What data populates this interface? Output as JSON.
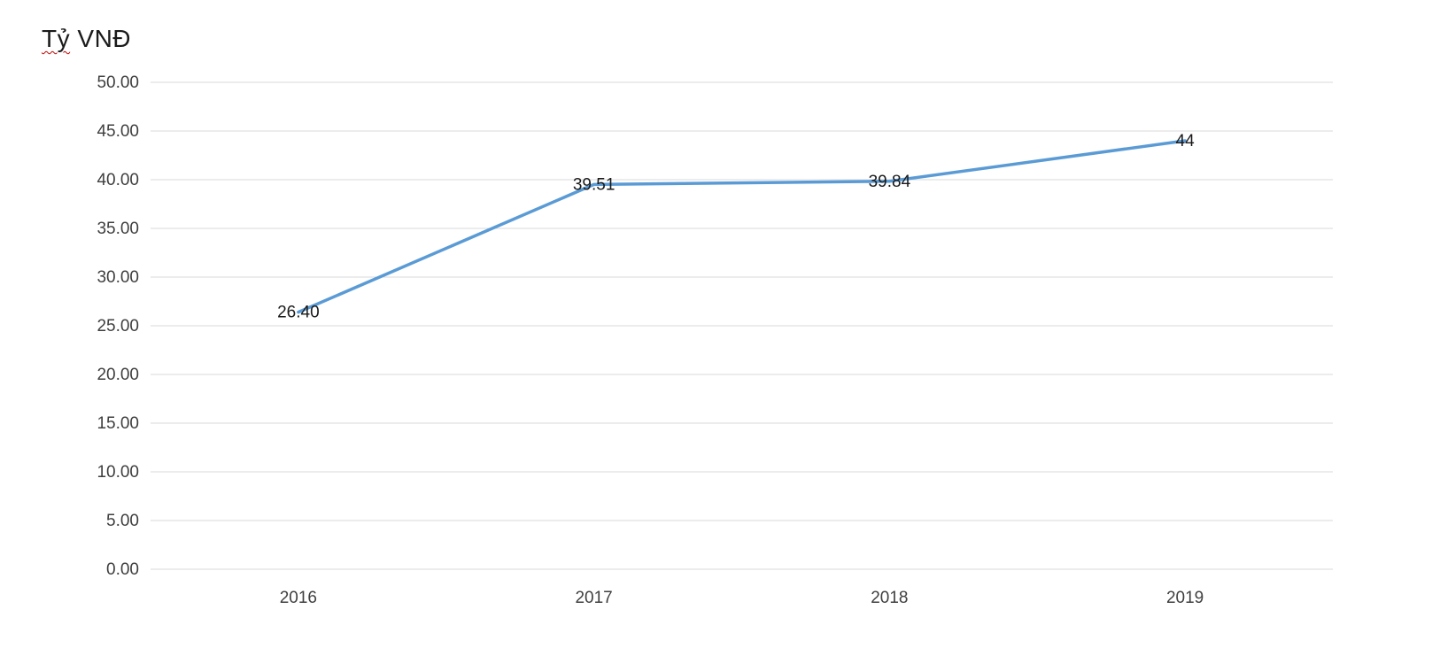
{
  "title": {
    "flagged_word": "Tỷ",
    "rest": " VNĐ"
  },
  "chart_data": {
    "type": "line",
    "title": "Tỷ VNĐ",
    "categories": [
      "2016",
      "2017",
      "2018",
      "2019"
    ],
    "values": [
      26.4,
      39.51,
      39.84,
      44
    ],
    "data_labels": [
      "26.40",
      "39.51",
      "39.84",
      "44"
    ],
    "xlabel": "",
    "ylabel": "Tỷ VNĐ",
    "ylim": [
      0,
      50
    ],
    "ytick_step": 5,
    "ytick_labels": [
      "0.00",
      "5.00",
      "10.00",
      "15.00",
      "20.00",
      "25.00",
      "30.00",
      "35.00",
      "40.00",
      "45.00",
      "50.00"
    ],
    "grid": true,
    "legend": "none",
    "colors": {
      "line": "#5b9bd5",
      "gridline": "#d9d9d9",
      "axis_text": "#3f3f3f",
      "label_text": "#1a1a1a",
      "spellcheck_squiggle": "#c00000"
    }
  }
}
